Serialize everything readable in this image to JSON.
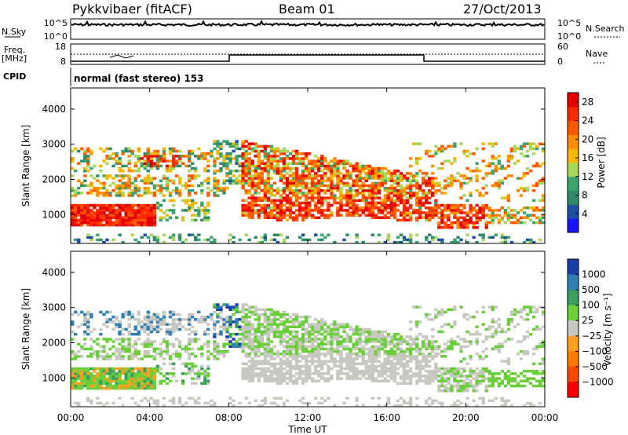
{
  "header": {
    "station": "Pykkvibaer (fitACF)",
    "beam": "Beam 01",
    "date": "27/Oct/2013"
  },
  "noise_panel": {
    "left_label": "N.Sky",
    "right_label": "N.Search",
    "left_ticks": [
      "10^5",
      "10^0"
    ],
    "right_ticks": [
      "10^5",
      "10^0"
    ]
  },
  "freq_panel": {
    "left_label_1": "Freq.",
    "left_label_2": "[MHz]",
    "right_label": "Nave",
    "left_ticks": [
      "18",
      "8"
    ],
    "right_ticks": [
      "60",
      "0"
    ]
  },
  "cpid": {
    "label": "CPID",
    "text": "normal (fast stereo) 153"
  },
  "colors": {
    "power": [
      "#1414ff",
      "#1e4fa0",
      "#2e8a6a",
      "#3aa46e",
      "#a8d85a",
      "#f5b800",
      "#ff8c00",
      "#ff5a00",
      "#ff2a00",
      "#e60000"
    ],
    "velocity": [
      "#1a3faa",
      "#2f7fb5",
      "#3aa060",
      "#6bcf3a",
      "#c8c8c0",
      "#ffa020",
      "#ff7a00",
      "#ff4a00",
      "#ff0000"
    ]
  },
  "chart_data": [
    {
      "type": "heatmap",
      "title": "",
      "xlabel": "Time UT",
      "ylabel": "Slant Range [km]",
      "x_ticks": [
        "00:00",
        "04:00",
        "08:00",
        "12:00",
        "16:00",
        "20:00",
        "00:00"
      ],
      "y_ticks": [
        "1000",
        "2000",
        "3000",
        "4000"
      ],
      "ylim": [
        180,
        4600
      ],
      "colorbar": {
        "label": "Power [dB]",
        "ticks": [
          "4",
          "8",
          "12",
          "16",
          "20",
          "24",
          "28"
        ],
        "range": [
          0,
          30
        ]
      }
    },
    {
      "type": "heatmap",
      "title": "",
      "xlabel": "Time UT",
      "ylabel": "Slant Range [km]",
      "x_ticks": [
        "00:00",
        "04:00",
        "08:00",
        "12:00",
        "16:00",
        "20:00",
        "00:00"
      ],
      "y_ticks": [
        "1000",
        "2000",
        "3000",
        "4000"
      ],
      "ylim": [
        180,
        4600
      ],
      "colorbar": {
        "label": "Velocity [m s⁻¹]",
        "ticks": [
          "1000",
          "500",
          "100",
          "25",
          "−25",
          "−100",
          "−500",
          "−1000"
        ]
      }
    }
  ]
}
